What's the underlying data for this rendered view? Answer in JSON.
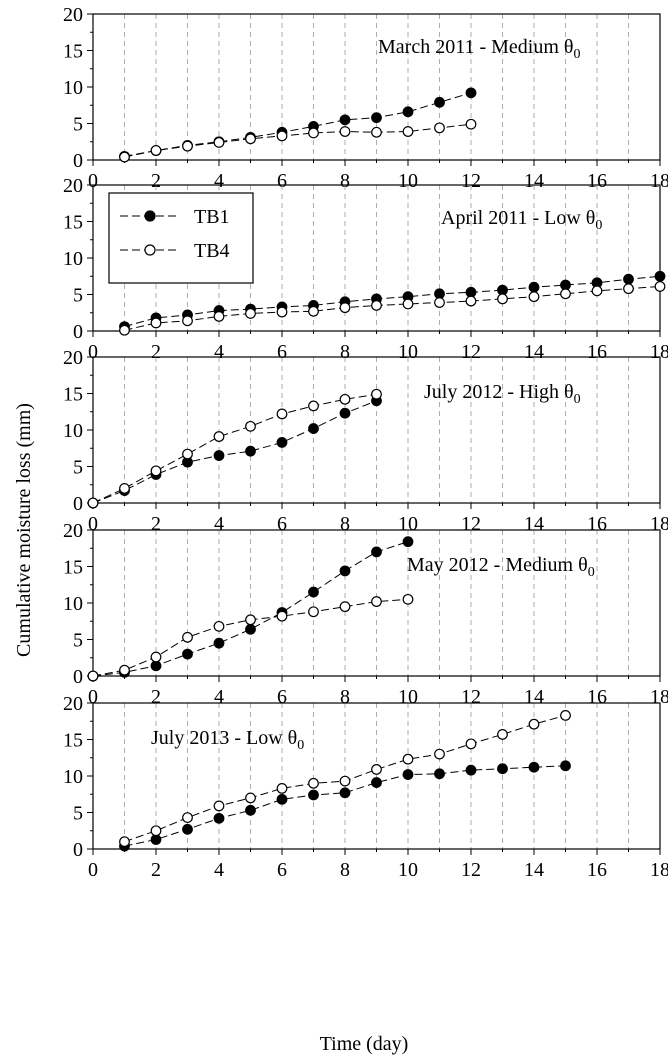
{
  "figure": {
    "ylabel": "Cumulative moisture loss (mm)",
    "xlabel": "Time (day)",
    "legend": [
      {
        "name": "TB1",
        "marker": "filled-circle"
      },
      {
        "name": "TB4",
        "marker": "open-circle"
      }
    ],
    "colors": {
      "line": "#000000",
      "grid": "#999999",
      "open_fill": "#ffffff"
    }
  },
  "chart_data": [
    {
      "type": "line",
      "title": "March 2011 - Medium θ",
      "title_subscript": "0",
      "xlim": [
        0,
        18
      ],
      "ylim": [
        0,
        20
      ],
      "xticks": [
        0,
        2,
        4,
        6,
        8,
        10,
        12,
        14,
        16,
        18
      ],
      "yticks": [
        0,
        5,
        10,
        15,
        20
      ],
      "grid": "vertical dashed",
      "series": [
        {
          "name": "TB1",
          "x": [
            1,
            2,
            3,
            4,
            5,
            6,
            7,
            8,
            9,
            10,
            11,
            12
          ],
          "y": [
            0.5,
            1.3,
            2.0,
            2.5,
            3.1,
            3.8,
            4.6,
            5.5,
            5.8,
            6.6,
            7.9,
            9.2
          ]
        },
        {
          "name": "TB4",
          "x": [
            1,
            2,
            3,
            4,
            5,
            6,
            7,
            8,
            9,
            10,
            11,
            12
          ],
          "y": [
            0.4,
            1.3,
            1.9,
            2.4,
            2.9,
            3.3,
            3.7,
            3.9,
            3.8,
            3.9,
            4.4,
            4.9
          ]
        }
      ]
    },
    {
      "type": "line",
      "title": "April 2011 - Low θ",
      "title_subscript": "0",
      "xlim": [
        0,
        18
      ],
      "ylim": [
        0,
        20
      ],
      "xticks": [
        0,
        2,
        4,
        6,
        8,
        10,
        12,
        14,
        16,
        18
      ],
      "yticks": [
        0,
        5,
        10,
        15,
        20
      ],
      "grid": "vertical dashed",
      "legend_position": "top-left",
      "series": [
        {
          "name": "TB1",
          "x": [
            1,
            2,
            3,
            4,
            5,
            6,
            7,
            8,
            9,
            10,
            11,
            12,
            13,
            14,
            15,
            16,
            17,
            18
          ],
          "y": [
            0.6,
            1.8,
            2.2,
            2.8,
            3.0,
            3.3,
            3.5,
            4.0,
            4.4,
            4.7,
            5.1,
            5.3,
            5.6,
            6.0,
            6.3,
            6.6,
            7.1,
            7.5
          ]
        },
        {
          "name": "TB4",
          "x": [
            1,
            2,
            3,
            4,
            5,
            6,
            7,
            8,
            9,
            10,
            11,
            12,
            13,
            14,
            15,
            16,
            17,
            18
          ],
          "y": [
            0.1,
            1.1,
            1.4,
            2.0,
            2.4,
            2.6,
            2.7,
            3.2,
            3.5,
            3.7,
            3.9,
            4.1,
            4.4,
            4.7,
            5.1,
            5.5,
            5.8,
            6.1
          ]
        }
      ]
    },
    {
      "type": "line",
      "title": "July 2012 - High θ",
      "title_subscript": "0",
      "xlim": [
        0,
        18
      ],
      "ylim": [
        0,
        20
      ],
      "xticks": [
        0,
        2,
        4,
        6,
        8,
        10,
        12,
        14,
        16,
        18
      ],
      "yticks": [
        0,
        5,
        10,
        15,
        20
      ],
      "grid": "vertical dashed",
      "series": [
        {
          "name": "TB1",
          "x": [
            0,
            1,
            2,
            3,
            4,
            5,
            6,
            7,
            8,
            9
          ],
          "y": [
            0,
            1.7,
            3.9,
            5.6,
            6.5,
            7.1,
            8.3,
            10.2,
            12.3,
            14.0
          ]
        },
        {
          "name": "TB4",
          "x": [
            0,
            1,
            2,
            3,
            4,
            5,
            6,
            7,
            8,
            9
          ],
          "y": [
            0,
            2.0,
            4.4,
            6.7,
            9.1,
            10.5,
            12.2,
            13.3,
            14.2,
            14.9
          ]
        }
      ]
    },
    {
      "type": "line",
      "title": "May 2012 - Medium θ",
      "title_subscript": "0",
      "xlim": [
        0,
        18
      ],
      "ylim": [
        0,
        20
      ],
      "xticks": [
        0,
        2,
        4,
        6,
        8,
        10,
        12,
        14,
        16,
        18
      ],
      "yticks": [
        0,
        5,
        10,
        15,
        20
      ],
      "grid": "vertical dashed",
      "series": [
        {
          "name": "TB1",
          "x": [
            0,
            1,
            2,
            3,
            4,
            5,
            6,
            7,
            8,
            9,
            10
          ],
          "y": [
            0,
            0.5,
            1.4,
            3.0,
            4.5,
            6.4,
            8.7,
            11.5,
            14.4,
            17.0,
            18.4
          ]
        },
        {
          "name": "TB4",
          "x": [
            0,
            1,
            2,
            3,
            4,
            5,
            6,
            7,
            8,
            9,
            10
          ],
          "y": [
            0,
            0.8,
            2.6,
            5.3,
            6.8,
            7.7,
            8.2,
            8.8,
            9.5,
            10.2,
            10.5
          ]
        }
      ]
    },
    {
      "type": "line",
      "title": "July 2013  - Low θ",
      "title_subscript": "0",
      "xlim": [
        0,
        18
      ],
      "ylim": [
        0,
        20
      ],
      "xticks": [
        0,
        2,
        4,
        6,
        8,
        10,
        12,
        14,
        16,
        18
      ],
      "yticks": [
        0,
        5,
        10,
        15,
        20
      ],
      "grid": "vertical dashed",
      "series": [
        {
          "name": "TB1",
          "x": [
            1,
            2,
            3,
            4,
            5,
            6,
            7,
            8,
            9,
            10,
            11,
            12,
            13,
            14,
            15
          ],
          "y": [
            0.4,
            1.3,
            2.7,
            4.2,
            5.3,
            6.8,
            7.4,
            7.7,
            9.1,
            10.2,
            10.3,
            10.8,
            11.0,
            11.2,
            11.4
          ]
        },
        {
          "name": "TB4",
          "x": [
            1,
            2,
            3,
            4,
            5,
            6,
            7,
            8,
            9,
            10,
            11,
            12,
            13,
            14,
            15
          ],
          "y": [
            1.0,
            2.5,
            4.3,
            5.9,
            7.0,
            8.3,
            9.0,
            9.3,
            10.9,
            12.3,
            13.0,
            14.4,
            15.7,
            17.1,
            18.3
          ]
        }
      ]
    }
  ]
}
